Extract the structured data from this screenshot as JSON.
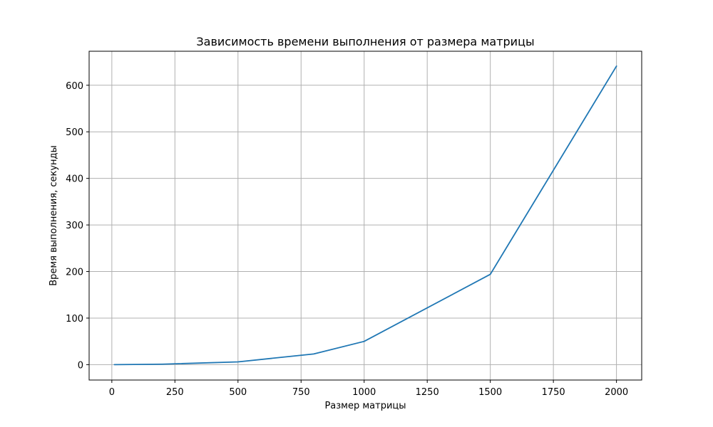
{
  "chart_data": {
    "type": "line",
    "title": "Зависимость времени выполнения от размера матрицы",
    "xlabel": "Размер матрицы",
    "ylabel": "Время выполнения, секунды",
    "xlim": [
      -90,
      2100
    ],
    "ylim": [
      -33,
      673
    ],
    "xticks": [
      0,
      250,
      500,
      750,
      1000,
      1250,
      1500,
      1750,
      2000
    ],
    "yticks": [
      0,
      100,
      200,
      300,
      400,
      500,
      600
    ],
    "grid": true,
    "legend": "none",
    "series": [
      {
        "color": "#1f77b4",
        "x": [
          10,
          200,
          500,
          800,
          1000,
          1500,
          2000
        ],
        "y": [
          0,
          1,
          6,
          23,
          50,
          194,
          641
        ]
      }
    ]
  }
}
